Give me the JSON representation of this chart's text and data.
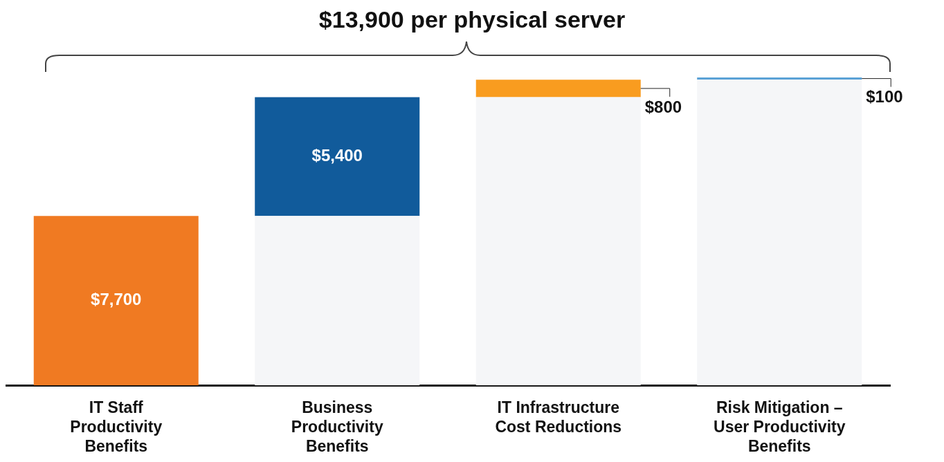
{
  "chart_data": {
    "type": "bar",
    "title": "$13,900 per physical server",
    "categories": [
      "IT Staff Productivity Benefits",
      "Business Productivity Benefits",
      "IT Infrastructure Cost Reductions",
      "Risk Mitigation – User Productivity Benefits"
    ],
    "stacked": true,
    "grid": false,
    "series": [
      {
        "color": "#f5f6f8",
        "values": [
          null,
          7700,
          13100,
          13900
        ]
      },
      {
        "colors": [
          "#f07a22",
          "#115b9b",
          "#f99c1f",
          "#5aa1d6"
        ],
        "values": [
          7700,
          5400,
          800,
          100
        ],
        "value_labels": [
          "$7,700",
          "$5,400",
          "$800",
          "$100"
        ]
      }
    ]
  }
}
